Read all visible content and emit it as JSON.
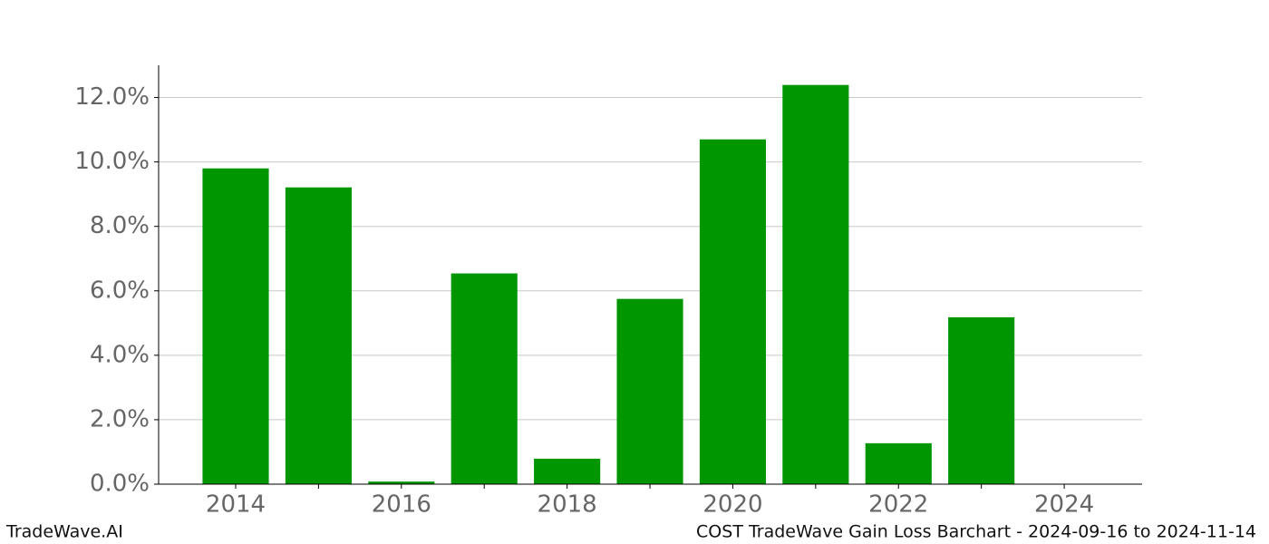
{
  "chart_data": {
    "type": "bar",
    "brand": "TradeWave.AI",
    "title": "COST TradeWave Gain Loss Barchart - 2024-09-16 to 2024-11-14",
    "x": [
      2014,
      2015,
      2016,
      2017,
      2018,
      2019,
      2020,
      2021,
      2022,
      2023
    ],
    "values": [
      9.8,
      9.21,
      0.08,
      6.54,
      0.79,
      5.75,
      10.7,
      12.39,
      1.27,
      5.18
    ],
    "color": "#009600",
    "xlim": [
      2013.07,
      2024.94
    ],
    "xticks": [
      2014,
      2016,
      2018,
      2020,
      2022,
      2024
    ],
    "xminorticks": [
      2015,
      2017,
      2019,
      2021,
      2023
    ],
    "ylim": [
      0,
      13.0
    ],
    "yticks": [
      {
        "value": 0,
        "label": "0.0%"
      },
      {
        "value": 2,
        "label": "2.0%"
      },
      {
        "value": 4,
        "label": "4.0%"
      },
      {
        "value": 6,
        "label": "6.0%"
      },
      {
        "value": 8,
        "label": "8.0%"
      },
      {
        "value": 10,
        "label": "10.0%"
      },
      {
        "value": 12,
        "label": "12.0%"
      }
    ],
    "grid": true
  }
}
